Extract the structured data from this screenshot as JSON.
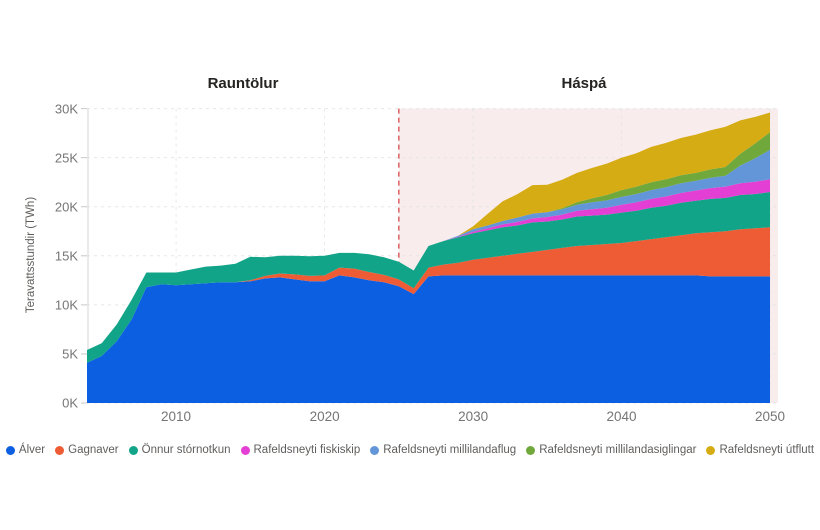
{
  "sections": {
    "actuals_title": "Rauntölur",
    "forecast_title": "Háspá"
  },
  "y_axis": {
    "title": "Teravattsstundir (TWh)",
    "ticks": [
      "0K",
      "5K",
      "10K",
      "15K",
      "20K",
      "25K",
      "30K"
    ]
  },
  "x_axis": {
    "ticks": [
      "2010",
      "2020",
      "2030",
      "2040",
      "2050"
    ]
  },
  "colors": {
    "forecast_bg": "#F8ECEC",
    "divider": "#DD6B6B",
    "grid": "#E4E4E4",
    "axis_line": "#D6D6D6",
    "tick_mark": "#C8C8C8",
    "tick_text": "#757575",
    "title_text": "#252423",
    "legend_text": "#605E5C"
  },
  "chart_data": {
    "type": "area",
    "stacked": true,
    "ylabel": "Teravattsstundir (TWh)",
    "ylim": [
      0,
      30
    ],
    "yunit": "K",
    "grid": true,
    "legend_position": "bottom",
    "forecast_start": 2025,
    "forecast_end": 2050,
    "x": [
      2004,
      2005,
      2006,
      2007,
      2008,
      2009,
      2010,
      2011,
      2012,
      2013,
      2014,
      2015,
      2016,
      2017,
      2018,
      2019,
      2020,
      2021,
      2022,
      2023,
      2024,
      2025,
      2026,
      2027,
      2028,
      2029,
      2030,
      2031,
      2032,
      2033,
      2034,
      2035,
      2036,
      2037,
      2038,
      2039,
      2040,
      2041,
      2042,
      2043,
      2044,
      2045,
      2046,
      2047,
      2048,
      2049,
      2050
    ],
    "series": [
      {
        "name": "Álver",
        "color": "#0D5FE2",
        "values": [
          4.1,
          4.8,
          6.3,
          8.5,
          11.8,
          12.1,
          12.0,
          12.1,
          12.2,
          12.3,
          12.3,
          12.4,
          12.7,
          12.8,
          12.6,
          12.4,
          12.4,
          13.0,
          12.8,
          12.5,
          12.3,
          11.9,
          11.1,
          12.9,
          13.0,
          13.0,
          13.0,
          13.0,
          13.0,
          13.0,
          13.0,
          13.0,
          13.0,
          13.0,
          13.0,
          13.0,
          13.0,
          13.0,
          13.0,
          13.0,
          13.0,
          13.0,
          12.9,
          12.9,
          12.9,
          12.9,
          12.9
        ]
      },
      {
        "name": "Gagnaver",
        "color": "#ED5C35",
        "values": [
          0,
          0,
          0,
          0,
          0,
          0,
          0,
          0,
          0,
          0,
          0,
          0.1,
          0.25,
          0.4,
          0.5,
          0.55,
          0.6,
          0.8,
          0.9,
          0.85,
          0.75,
          0.7,
          0.6,
          0.9,
          1.1,
          1.3,
          1.6,
          1.8,
          2.0,
          2.2,
          2.4,
          2.6,
          2.8,
          3.0,
          3.1,
          3.2,
          3.3,
          3.5,
          3.7,
          3.9,
          4.1,
          4.3,
          4.5,
          4.6,
          4.8,
          4.9,
          5.0
        ]
      },
      {
        "name": "Önnur stórnotkun",
        "color": "#12A488",
        "values": [
          1.3,
          1.3,
          1.7,
          2.0,
          1.5,
          1.2,
          1.3,
          1.5,
          1.7,
          1.7,
          1.9,
          2.4,
          1.9,
          1.8,
          1.9,
          2.0,
          2.0,
          1.5,
          1.6,
          1.8,
          1.8,
          1.8,
          1.8,
          2.2,
          2.4,
          2.6,
          2.7,
          2.8,
          2.9,
          2.9,
          3.0,
          2.9,
          2.9,
          3.0,
          3.0,
          3.0,
          3.1,
          3.1,
          3.2,
          3.2,
          3.3,
          3.3,
          3.4,
          3.4,
          3.5,
          3.5,
          3.6
        ]
      },
      {
        "name": "Rafeldsneyti fiskiskip",
        "color": "#E33FD4",
        "values": [
          0,
          0,
          0,
          0,
          0,
          0,
          0,
          0,
          0,
          0,
          0,
          0,
          0,
          0,
          0,
          0,
          0,
          0,
          0,
          0,
          0,
          0,
          0,
          0,
          0,
          0.05,
          0.15,
          0.2,
          0.3,
          0.35,
          0.4,
          0.45,
          0.5,
          0.6,
          0.65,
          0.7,
          0.8,
          0.85,
          0.9,
          0.95,
          1.0,
          1.05,
          1.1,
          1.15,
          1.2,
          1.25,
          1.3
        ]
      },
      {
        "name": "Rafeldsneyti millilandaflug",
        "color": "#6296D8",
        "values": [
          0,
          0,
          0,
          0,
          0,
          0,
          0,
          0,
          0,
          0,
          0,
          0,
          0,
          0,
          0,
          0,
          0,
          0,
          0,
          0,
          0,
          0,
          0,
          0,
          0,
          0.1,
          0.25,
          0.3,
          0.35,
          0.45,
          0.5,
          0.5,
          0.55,
          0.6,
          0.7,
          0.75,
          0.8,
          0.85,
          0.9,
          0.95,
          1.0,
          1.0,
          1.05,
          1.1,
          1.8,
          2.4,
          3.0
        ]
      },
      {
        "name": "Rafeldsneyti millilandasiglingar",
        "color": "#70A83B",
        "values": [
          0,
          0,
          0,
          0,
          0,
          0,
          0,
          0,
          0,
          0,
          0,
          0,
          0,
          0,
          0,
          0,
          0,
          0,
          0,
          0,
          0,
          0,
          0,
          0,
          0,
          0,
          0,
          0,
          0,
          0,
          0,
          0,
          0.1,
          0.25,
          0.4,
          0.55,
          0.7,
          0.75,
          0.8,
          0.8,
          0.8,
          0.8,
          0.85,
          0.9,
          1.2,
          1.5,
          1.8
        ]
      },
      {
        "name": "Rafeldsneyti útflutt",
        "color": "#D5AC14",
        "values": [
          0,
          0,
          0,
          0,
          0,
          0,
          0,
          0,
          0,
          0,
          0,
          0,
          0,
          0,
          0,
          0,
          0,
          0,
          0,
          0,
          0,
          0,
          0,
          0,
          0,
          0,
          0.3,
          1.2,
          2.0,
          2.4,
          2.9,
          2.8,
          2.9,
          3.0,
          3.1,
          3.2,
          3.3,
          3.4,
          3.6,
          3.7,
          3.8,
          3.9,
          4.0,
          4.1,
          3.4,
          2.7,
          2.0
        ]
      }
    ]
  }
}
